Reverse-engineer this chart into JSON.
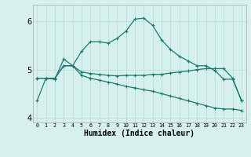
{
  "xlabel": "Humidex (Indice chaleur)",
  "x_values": [
    0,
    1,
    2,
    3,
    4,
    5,
    6,
    7,
    8,
    9,
    10,
    11,
    12,
    13,
    14,
    15,
    16,
    17,
    18,
    19,
    20,
    21,
    22,
    23
  ],
  "line_bell": [
    4.35,
    4.82,
    4.8,
    5.22,
    5.08,
    5.38,
    5.58,
    5.58,
    5.55,
    5.65,
    5.8,
    6.05,
    6.07,
    5.92,
    5.62,
    5.42,
    5.28,
    5.18,
    5.08,
    5.08,
    4.98,
    4.8,
    4.8,
    4.35
  ],
  "line_flat": [
    4.82,
    4.82,
    4.82,
    5.08,
    5.08,
    4.95,
    4.92,
    4.9,
    4.88,
    4.87,
    4.88,
    4.88,
    4.88,
    4.9,
    4.9,
    4.93,
    4.95,
    4.97,
    5.0,
    5.02,
    5.02,
    5.02,
    4.82,
    4.35
  ],
  "line_decline": [
    4.82,
    4.82,
    4.82,
    5.08,
    5.08,
    4.88,
    4.82,
    4.78,
    4.74,
    4.7,
    4.65,
    4.62,
    4.58,
    4.55,
    4.5,
    4.45,
    4.4,
    4.35,
    4.3,
    4.25,
    4.2,
    4.18,
    4.18,
    4.15
  ],
  "line_color": "#1a7a6e",
  "bg_color": "#d6f0ee",
  "grid_color": "#b8ddd9",
  "ylim": [
    3.9,
    6.35
  ],
  "xlim": [
    -0.5,
    23.5
  ]
}
